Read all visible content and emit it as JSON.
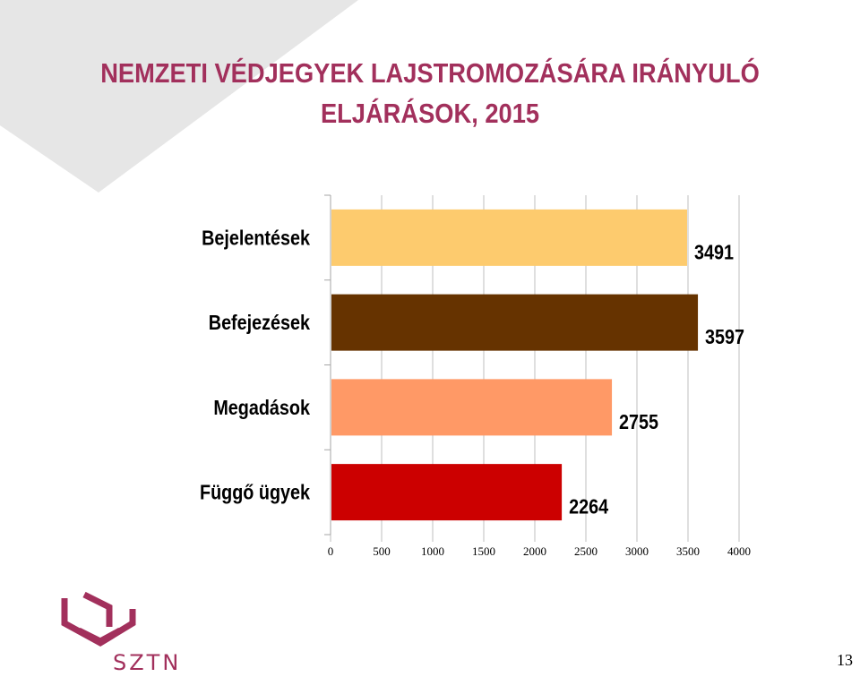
{
  "title_line1": "NEMZETI VÉDJEGYEK LAJSTROMOZÁSÁRA IRÁNYULÓ",
  "title_line2": "ELJÁRÁSOK, 2015",
  "logo_text": "SZTNH",
  "page_number": "13",
  "colors": {
    "title": "#a2305c",
    "logo": "#a2305c"
  },
  "chart_data": {
    "type": "bar",
    "orientation": "horizontal",
    "categories": [
      "Bejelentések",
      "Befejezések",
      "Megadások",
      "Függő ügyek"
    ],
    "values": [
      3491,
      3597,
      2755,
      2264
    ],
    "bar_colors": [
      "#fdcb6e",
      "#663300",
      "#ff9966",
      "#cc0000"
    ],
    "xlim": [
      0,
      4000
    ],
    "xticks": [
      0,
      500,
      1000,
      1500,
      2000,
      2500,
      3000,
      3500,
      4000
    ],
    "grid": "vertical",
    "legend": "none"
  }
}
